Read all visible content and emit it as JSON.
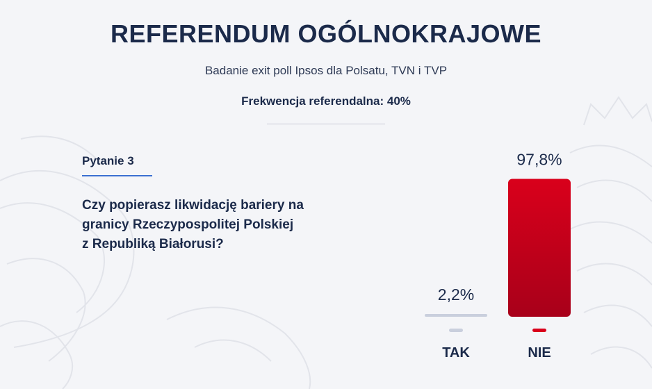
{
  "header": {
    "title": "REFERENDUM OGÓLNOKRAJOWE",
    "subtitle": "Badanie exit poll Ipsos dla Polsatu, TVN i TVP",
    "turnout": "Frekwencja referendalna: 40%"
  },
  "question": {
    "label": "Pytanie 3",
    "text_lines": [
      "Czy popierasz likwidację bariery na",
      "granicy Rzeczypospolitej Polskiej",
      "z Republiką Białorusi?"
    ]
  },
  "colors": {
    "tak": "#c9cfdd",
    "nie_top": "#d9001b",
    "nie_bottom": "#a8001a",
    "accent_blue": "#3b6fd1"
  },
  "chart_data": {
    "type": "bar",
    "categories": [
      "TAK",
      "NIE"
    ],
    "values": [
      2.2,
      97.8
    ],
    "value_labels": [
      "2,2%",
      "97,8%"
    ],
    "ylim": [
      0,
      100
    ],
    "grid": false,
    "legend": "none"
  }
}
